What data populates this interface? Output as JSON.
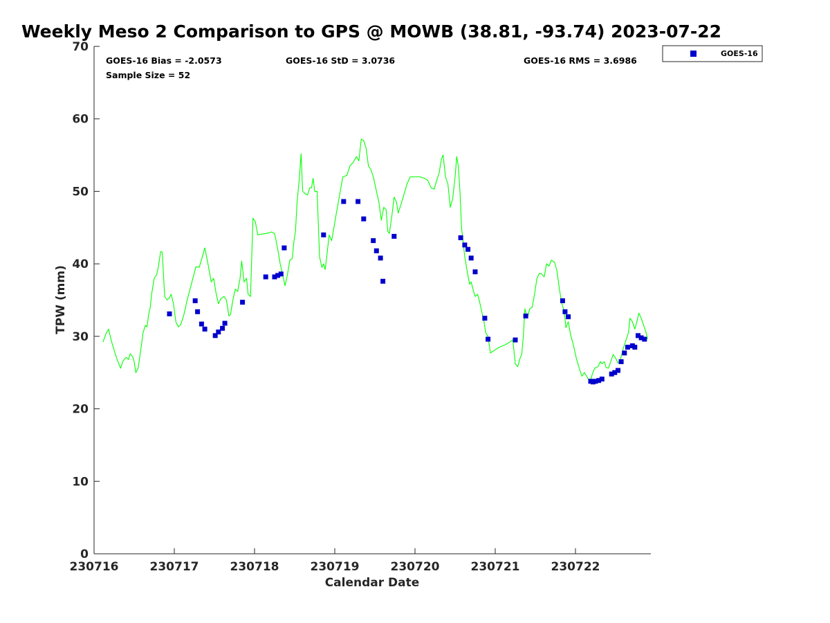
{
  "chart_data": {
    "type": "scatter",
    "title": "Weekly Meso 2 Comparison to GPS @ MOWB (38.81, -93.74) 2023-07-22",
    "xlabel": "Calendar Date",
    "ylabel": "TPW (mm)",
    "ylim": [
      0,
      70
    ],
    "xlim": [
      0,
      6.93
    ],
    "yticks": [
      0,
      10,
      20,
      30,
      40,
      50,
      60,
      70
    ],
    "xticks": [
      {
        "value": 0,
        "label": "230716"
      },
      {
        "value": 1,
        "label": "230717"
      },
      {
        "value": 2,
        "label": "230718"
      },
      {
        "value": 3,
        "label": "230719"
      },
      {
        "value": 4,
        "label": "230720"
      },
      {
        "value": 5,
        "label": "230721"
      },
      {
        "value": 6,
        "label": "230722"
      }
    ],
    "grid": false,
    "legend_position": "outside top-right",
    "stats": {
      "bias": "GOES-16 Bias = -2.0573",
      "std": "GOES-16 StD = 3.0736",
      "rms": "GOES-16 RMS = 3.6986",
      "sample": "Sample Size = 52"
    },
    "series": [
      {
        "name": "GOES-16",
        "kind": "scatter",
        "color": "#0000cc",
        "points": [
          [
            0.94,
            33.1
          ],
          [
            1.26,
            34.9
          ],
          [
            1.29,
            33.4
          ],
          [
            1.34,
            31.7
          ],
          [
            1.38,
            31.0
          ],
          [
            1.51,
            30.1
          ],
          [
            1.55,
            30.6
          ],
          [
            1.6,
            31.1
          ],
          [
            1.63,
            31.8
          ],
          [
            1.85,
            34.7
          ],
          [
            2.14,
            38.2
          ],
          [
            2.25,
            38.2
          ],
          [
            2.29,
            38.4
          ],
          [
            2.33,
            38.6
          ],
          [
            2.37,
            42.2
          ],
          [
            2.86,
            44.0
          ],
          [
            3.11,
            48.6
          ],
          [
            3.29,
            48.6
          ],
          [
            3.36,
            46.2
          ],
          [
            3.48,
            43.2
          ],
          [
            3.52,
            41.8
          ],
          [
            3.57,
            40.8
          ],
          [
            3.6,
            37.6
          ],
          [
            3.74,
            43.8
          ],
          [
            4.57,
            43.6
          ],
          [
            4.62,
            42.6
          ],
          [
            4.66,
            42.0
          ],
          [
            4.7,
            40.8
          ],
          [
            4.75,
            38.9
          ],
          [
            4.87,
            32.5
          ],
          [
            4.91,
            29.6
          ],
          [
            5.25,
            29.5
          ],
          [
            5.38,
            32.8
          ],
          [
            5.84,
            34.9
          ],
          [
            5.87,
            33.4
          ],
          [
            5.91,
            32.7
          ],
          [
            6.19,
            23.8
          ],
          [
            6.22,
            23.7
          ],
          [
            6.25,
            23.8
          ],
          [
            6.29,
            23.9
          ],
          [
            6.33,
            24.1
          ],
          [
            6.45,
            24.8
          ],
          [
            6.49,
            25.0
          ],
          [
            6.53,
            25.3
          ],
          [
            6.57,
            26.5
          ],
          [
            6.61,
            27.7
          ],
          [
            6.65,
            28.5
          ],
          [
            6.71,
            28.7
          ],
          [
            6.74,
            28.5
          ],
          [
            6.78,
            30.1
          ],
          [
            6.82,
            29.8
          ],
          [
            6.86,
            29.6
          ]
        ]
      },
      {
        "kind": "line",
        "color": "#00ff00",
        "points": [
          [
            0.11,
            29.2
          ],
          [
            0.15,
            30.4
          ],
          [
            0.18,
            31.0
          ],
          [
            0.22,
            29.2
          ],
          [
            0.28,
            27.0
          ],
          [
            0.33,
            25.6
          ],
          [
            0.36,
            26.6
          ],
          [
            0.4,
            27.1
          ],
          [
            0.43,
            26.8
          ],
          [
            0.45,
            27.6
          ],
          [
            0.48,
            27.2
          ],
          [
            0.5,
            26.5
          ],
          [
            0.52,
            25.0
          ],
          [
            0.55,
            25.6
          ],
          [
            0.58,
            28.0
          ],
          [
            0.61,
            30.5
          ],
          [
            0.64,
            31.5
          ],
          [
            0.66,
            31.3
          ],
          [
            0.68,
            33.0
          ],
          [
            0.7,
            34.0
          ],
          [
            0.72,
            36.0
          ],
          [
            0.75,
            38.0
          ],
          [
            0.78,
            38.5
          ],
          [
            0.8,
            39.5
          ],
          [
            0.83,
            41.7
          ],
          [
            0.85,
            41.6
          ],
          [
            0.88,
            35.5
          ],
          [
            0.91,
            35.0
          ],
          [
            0.94,
            35.3
          ],
          [
            0.96,
            35.8
          ],
          [
            0.99,
            34.5
          ],
          [
            1.02,
            32.0
          ],
          [
            1.05,
            31.3
          ],
          [
            1.08,
            31.6
          ],
          [
            1.12,
            33.0
          ],
          [
            1.16,
            35.0
          ],
          [
            1.22,
            37.5
          ],
          [
            1.27,
            39.6
          ],
          [
            1.31,
            39.5
          ],
          [
            1.35,
            41.0
          ],
          [
            1.38,
            42.2
          ],
          [
            1.42,
            40.0
          ],
          [
            1.46,
            37.5
          ],
          [
            1.49,
            38.0
          ],
          [
            1.52,
            36.0
          ],
          [
            1.55,
            34.5
          ],
          [
            1.58,
            35.2
          ],
          [
            1.62,
            35.5
          ],
          [
            1.65,
            35.0
          ],
          [
            1.68,
            32.8
          ],
          [
            1.7,
            33.0
          ],
          [
            1.73,
            35.0
          ],
          [
            1.76,
            36.5
          ],
          [
            1.79,
            36.2
          ],
          [
            1.82,
            38.0
          ],
          [
            1.84,
            40.4
          ],
          [
            1.87,
            37.5
          ],
          [
            1.9,
            38.0
          ],
          [
            1.92,
            35.8
          ],
          [
            1.95,
            35.5
          ],
          [
            1.98,
            46.3
          ],
          [
            2.01,
            45.8
          ],
          [
            2.04,
            44.0
          ],
          [
            2.09,
            44.1
          ],
          [
            2.15,
            44.2
          ],
          [
            2.21,
            44.4
          ],
          [
            2.25,
            44.2
          ],
          [
            2.29,
            42.0
          ],
          [
            2.32,
            40.0
          ],
          [
            2.35,
            38.5
          ],
          [
            2.38,
            37.0
          ],
          [
            2.41,
            38.5
          ],
          [
            2.44,
            40.5
          ],
          [
            2.47,
            40.7
          ],
          [
            2.49,
            43.0
          ],
          [
            2.51,
            44.5
          ],
          [
            2.53,
            48.5
          ],
          [
            2.56,
            52.0
          ],
          [
            2.58,
            55.2
          ],
          [
            2.6,
            50.0
          ],
          [
            2.63,
            49.7
          ],
          [
            2.66,
            49.5
          ],
          [
            2.69,
            50.5
          ],
          [
            2.71,
            50.5
          ],
          [
            2.73,
            51.8
          ],
          [
            2.75,
            50.0
          ],
          [
            2.78,
            50.0
          ],
          [
            2.81,
            41.0
          ],
          [
            2.84,
            39.5
          ],
          [
            2.86,
            40.0
          ],
          [
            2.88,
            39.2
          ],
          [
            2.9,
            41.0
          ],
          [
            2.93,
            44.0
          ],
          [
            2.96,
            43.2
          ],
          [
            2.99,
            45.0
          ],
          [
            3.02,
            47.0
          ],
          [
            3.06,
            49.5
          ],
          [
            3.1,
            52.0
          ],
          [
            3.15,
            52.2
          ],
          [
            3.19,
            53.5
          ],
          [
            3.23,
            54.0
          ],
          [
            3.27,
            54.8
          ],
          [
            3.3,
            54.2
          ],
          [
            3.33,
            57.2
          ],
          [
            3.36,
            57.0
          ],
          [
            3.39,
            56.0
          ],
          [
            3.42,
            53.5
          ],
          [
            3.45,
            53.0
          ],
          [
            3.48,
            52.0
          ],
          [
            3.52,
            50.0
          ],
          [
            3.55,
            48.5
          ],
          [
            3.58,
            46.0
          ],
          [
            3.61,
            47.8
          ],
          [
            3.64,
            47.5
          ],
          [
            3.66,
            44.5
          ],
          [
            3.68,
            44.2
          ],
          [
            3.71,
            46.5
          ],
          [
            3.74,
            49.2
          ],
          [
            3.77,
            48.5
          ],
          [
            3.79,
            47.0
          ],
          [
            3.82,
            48.0
          ],
          [
            3.86,
            49.5
          ],
          [
            3.9,
            51.0
          ],
          [
            3.94,
            52.0
          ],
          [
            4.0,
            52.0
          ],
          [
            4.06,
            52.0
          ],
          [
            4.12,
            51.8
          ],
          [
            4.16,
            51.5
          ],
          [
            4.2,
            50.5
          ],
          [
            4.24,
            50.3
          ],
          [
            4.27,
            51.5
          ],
          [
            4.3,
            52.5
          ],
          [
            4.33,
            54.5
          ],
          [
            4.35,
            55.0
          ],
          [
            4.38,
            52.0
          ],
          [
            4.41,
            51.0
          ],
          [
            4.44,
            47.8
          ],
          [
            4.47,
            49.0
          ],
          [
            4.5,
            52.0
          ],
          [
            4.52,
            54.8
          ],
          [
            4.54,
            53.5
          ],
          [
            4.56,
            50.0
          ],
          [
            4.58,
            45.0
          ],
          [
            4.6,
            43.0
          ],
          [
            4.62,
            41.0
          ],
          [
            4.65,
            39.0
          ],
          [
            4.68,
            37.2
          ],
          [
            4.7,
            37.5
          ],
          [
            4.73,
            36.2
          ],
          [
            4.75,
            35.5
          ],
          [
            4.78,
            35.8
          ],
          [
            4.8,
            35.0
          ],
          [
            4.83,
            33.5
          ],
          [
            4.86,
            32.0
          ],
          [
            4.88,
            30.5
          ],
          [
            4.91,
            30.0
          ],
          [
            4.94,
            27.7
          ],
          [
            4.98,
            28.0
          ],
          [
            5.05,
            28.5
          ],
          [
            5.12,
            28.8
          ],
          [
            5.18,
            29.2
          ],
          [
            5.22,
            29.5
          ],
          [
            5.25,
            26.2
          ],
          [
            5.28,
            25.8
          ],
          [
            5.31,
            27.0
          ],
          [
            5.33,
            27.5
          ],
          [
            5.35,
            30.0
          ],
          [
            5.37,
            33.8
          ],
          [
            5.4,
            32.5
          ],
          [
            5.43,
            33.8
          ],
          [
            5.46,
            34.0
          ],
          [
            5.49,
            35.8
          ],
          [
            5.52,
            38.0
          ],
          [
            5.55,
            38.7
          ],
          [
            5.58,
            38.6
          ],
          [
            5.61,
            38.2
          ],
          [
            5.64,
            40.0
          ],
          [
            5.67,
            39.7
          ],
          [
            5.7,
            40.5
          ],
          [
            5.74,
            40.2
          ],
          [
            5.77,
            39.0
          ],
          [
            5.8,
            36.5
          ],
          [
            5.83,
            34.5
          ],
          [
            5.86,
            33.5
          ],
          [
            5.88,
            31.2
          ],
          [
            5.91,
            32.0
          ],
          [
            5.94,
            30.2
          ],
          [
            5.97,
            29.0
          ],
          [
            6.01,
            27.0
          ],
          [
            6.05,
            25.5
          ],
          [
            6.08,
            24.5
          ],
          [
            6.11,
            25.0
          ],
          [
            6.15,
            24.3
          ],
          [
            6.18,
            23.6
          ],
          [
            6.21,
            24.8
          ],
          [
            6.24,
            25.6
          ],
          [
            6.28,
            25.8
          ],
          [
            6.31,
            26.5
          ],
          [
            6.33,
            26.2
          ],
          [
            6.36,
            26.5
          ],
          [
            6.38,
            25.7
          ],
          [
            6.41,
            25.6
          ],
          [
            6.44,
            26.5
          ],
          [
            6.47,
            27.5
          ],
          [
            6.5,
            27.0
          ],
          [
            6.53,
            26.3
          ],
          [
            6.56,
            26.8
          ],
          [
            6.6,
            28.5
          ],
          [
            6.63,
            29.5
          ],
          [
            6.66,
            30.5
          ],
          [
            6.68,
            32.5
          ],
          [
            6.71,
            32.0
          ],
          [
            6.74,
            31.0
          ],
          [
            6.77,
            32.2
          ],
          [
            6.79,
            33.2
          ],
          [
            6.82,
            32.5
          ],
          [
            6.85,
            31.5
          ],
          [
            6.88,
            30.5
          ],
          [
            6.9,
            29.6
          ]
        ]
      }
    ]
  }
}
